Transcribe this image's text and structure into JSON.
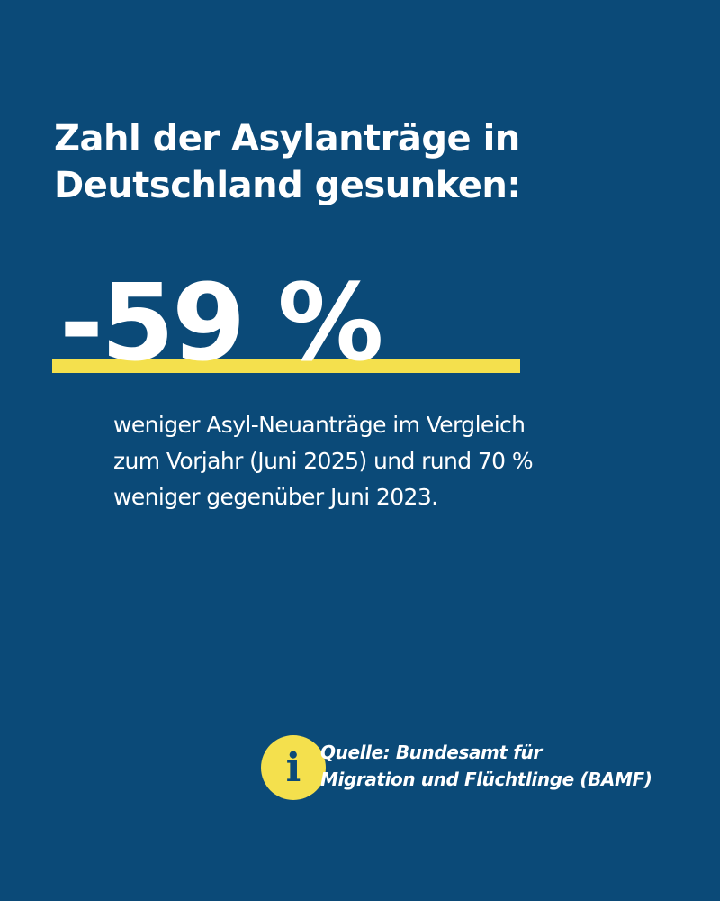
{
  "colors": {
    "background": "#0b4a78",
    "accent": "#f4e04d",
    "text": "#ffffff"
  },
  "headline": {
    "line1": "Zahl der Asylanträge in",
    "line2": "Deutschland gesunken:"
  },
  "figure": {
    "value": "-59 %"
  },
  "description": {
    "line1": "weniger Asyl-Neuanträge im Vergleich",
    "line2": "zum Vorjahr (Juni 2025) und rund 70 %",
    "line3": "weniger gegenüber Juni 2023."
  },
  "source": {
    "icon": "info-icon",
    "icon_glyph": "i",
    "line1": "Quelle: Bundesamt für",
    "line2": "Migration und Flüchtlinge (BAMF)"
  }
}
